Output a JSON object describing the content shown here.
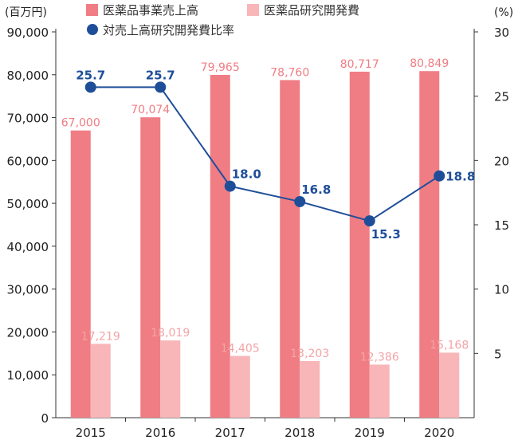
{
  "chart_data": {
    "type": "bar",
    "categories": [
      "2015",
      "2016",
      "2017",
      "2018",
      "2019",
      "2020"
    ],
    "series": [
      {
        "name": "医薬品事業売上高",
        "values": [
          67000,
          70074,
          79965,
          78760,
          80717,
          80849
        ],
        "labels": [
          "67,000",
          "70,074",
          "79,965",
          "78,760",
          "80,717",
          "80,849"
        ],
        "color": "#f07d84",
        "axis": "left",
        "kind": "bar"
      },
      {
        "name": "医薬品研究開発費",
        "values": [
          17219,
          18019,
          14405,
          13203,
          12386,
          15168
        ],
        "labels": [
          "17,219",
          "18,019",
          "14,405",
          "13,203",
          "12,386",
          "15,168"
        ],
        "color": "#f8b6b8",
        "axis": "left",
        "kind": "bar"
      },
      {
        "name": "対売上高研究開発費比率",
        "values": [
          25.7,
          25.7,
          18.0,
          16.8,
          15.3,
          18.8
        ],
        "labels": [
          "25.7",
          "25.7",
          "18.0",
          "16.8",
          "15.3",
          "18.8"
        ],
        "color": "#1f4e99",
        "axis": "right",
        "kind": "line"
      }
    ],
    "left_axis": {
      "unit": "(百万円)",
      "ylim": [
        0,
        90000
      ],
      "ticks": [
        "0",
        "10,000",
        "20,000",
        "30,000",
        "40,000",
        "50,000",
        "60,000",
        "70,000",
        "80,000",
        "90,000"
      ]
    },
    "right_axis": {
      "unit": "(%)",
      "ylim": [
        0,
        30
      ],
      "ticks": [
        {
          "v": 5,
          "t": "5"
        },
        {
          "v": 10,
          "t": "10"
        },
        {
          "v": 15,
          "t": "15"
        },
        {
          "v": 20,
          "t": "20"
        },
        {
          "v": 25,
          "t": "25"
        },
        {
          "v": 30,
          "t": "30"
        }
      ]
    },
    "grid": false,
    "legend_position": "top"
  }
}
